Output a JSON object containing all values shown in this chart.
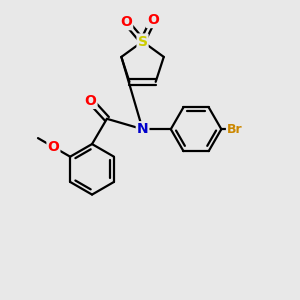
{
  "bg_color": "#e8e8e8",
  "atom_colors": {
    "S": "#cccc00",
    "O": "#ff0000",
    "N": "#0000cc",
    "Br": "#cc8800",
    "C": "#000000"
  },
  "bond_color": "#000000",
  "bond_width": 1.6,
  "font_size_atoms": 10,
  "font_size_label": 9
}
